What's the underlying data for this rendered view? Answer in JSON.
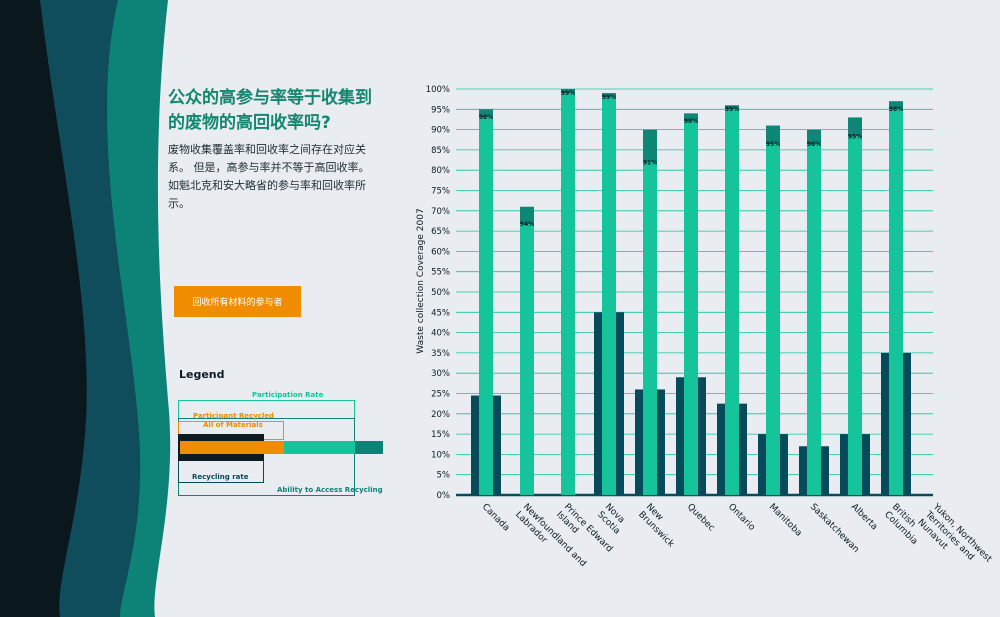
{
  "heading": {
    "title": "公众的高参与率等于收集到的废物的高回收率吗?",
    "description": "废物收集覆盖率和回收率之间存在对应关系。 但是，高参与率并不等于高回收率。 如魁北克和安大略省的参与率和回收率所示。"
  },
  "filter_button": {
    "label": "回收所有材料的参与者"
  },
  "legend": {
    "title": "Legend",
    "participation_rate": "Participation Rate",
    "participant_recycled": "Participant Recycled",
    "all_materials": "All of Materials",
    "recycling_rate": "Recycling rate",
    "ability_to_access": "Ability to Access Recycling"
  },
  "colors": {
    "coverage": "#0f8777",
    "participation": "#15c49b",
    "recycling": "#074a5a",
    "accent": "#ef8c00",
    "title": "#14876f"
  },
  "chart_data": {
    "type": "bar",
    "ylabel": "Waste collection Coverage 2007",
    "ylim": [
      0,
      100
    ],
    "yticks": [
      "0%",
      "5%",
      "10%",
      "15%",
      "20%",
      "25%",
      "30%",
      "35%",
      "40%",
      "45%",
      "50%",
      "55%",
      "60%",
      "65%",
      "70%",
      "75%",
      "80%",
      "85%",
      "90%",
      "95%",
      "100%"
    ],
    "categories": [
      "Canada",
      "Newfoundland and Labrador",
      "Prince Edward Island",
      "Nova Scotia",
      "New Brunswick",
      "Quebec",
      "Ontario",
      "Manitoba",
      "Saskatchewan",
      "Alberta",
      "British Columbia",
      "Yukon, Northwest Territories and Nunavut"
    ],
    "category_lines": [
      [
        "Canada"
      ],
      [
        "Newfoundland and",
        "Labrador"
      ],
      [
        "Prince Edward",
        "Island"
      ],
      [
        "Nova",
        "Scotia"
      ],
      [
        "New",
        "Brunswick"
      ],
      [
        "Quebec"
      ],
      [
        "Ontario"
      ],
      [
        "Manitoba"
      ],
      [
        "Saskatchewan"
      ],
      [
        "Alberta"
      ],
      [
        "British",
        "Columbia"
      ],
      [
        "Yukon, Northwest",
        "Territories and",
        "Nunavut"
      ]
    ],
    "coverage": [
      95,
      71,
      100,
      99,
      90,
      94,
      96,
      91,
      90,
      93,
      97,
      null
    ],
    "participation_labels": [
      "98%",
      "94%",
      "99%",
      "99%",
      "91%",
      "98%",
      "99%",
      "95%",
      "96%",
      "95%",
      "98%",
      null
    ],
    "participation_values": [
      98,
      94,
      99,
      99,
      91,
      98,
      99,
      95,
      96,
      95,
      98,
      null
    ],
    "recycling_rate": [
      24.5,
      null,
      null,
      45,
      26,
      29,
      22.5,
      15,
      12,
      15,
      35,
      null
    ]
  }
}
